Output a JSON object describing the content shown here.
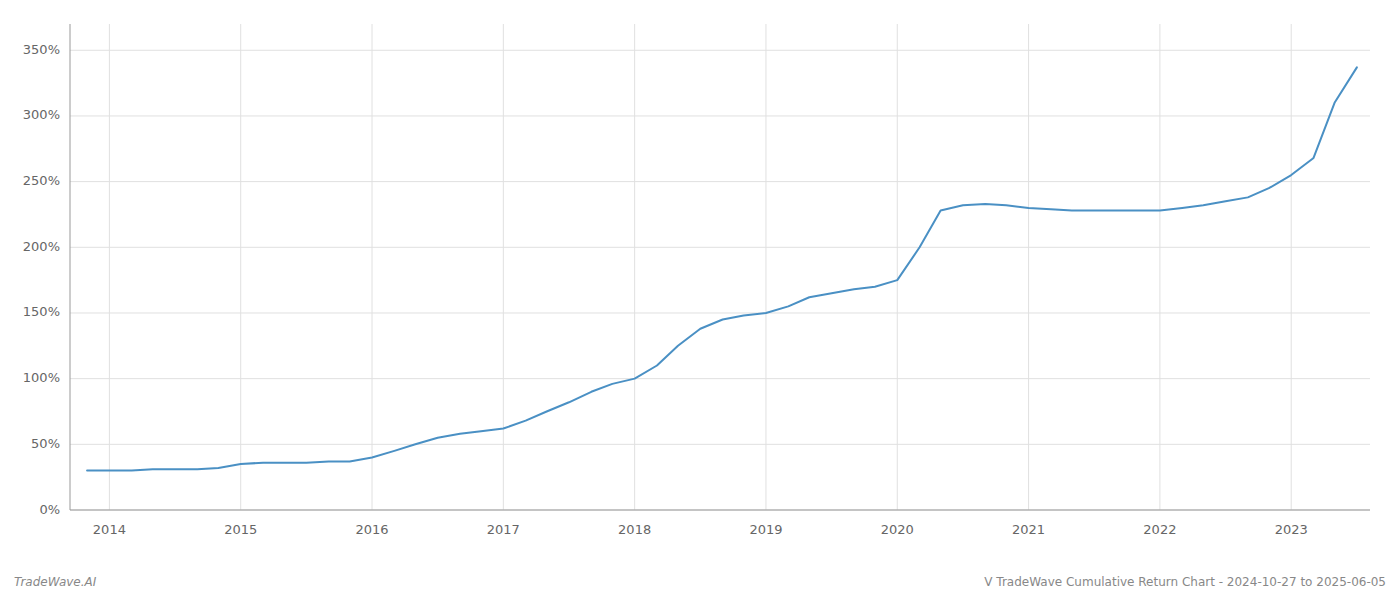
{
  "chart_data": {
    "type": "line",
    "title": "V TradeWave Cumulative Return Chart - 2024-10-27 to 2025-06-05",
    "annotations": [
      "TradeWave.AI"
    ],
    "color": "#4a90c4",
    "grid": true,
    "x": [
      2013.83,
      2014.0,
      2014.17,
      2014.33,
      2014.5,
      2014.67,
      2014.83,
      2015.0,
      2015.17,
      2015.33,
      2015.5,
      2015.67,
      2015.83,
      2016.0,
      2016.17,
      2016.33,
      2016.5,
      2016.67,
      2016.83,
      2017.0,
      2017.17,
      2017.33,
      2017.5,
      2017.67,
      2017.83,
      2018.0,
      2018.17,
      2018.33,
      2018.5,
      2018.67,
      2018.83,
      2019.0,
      2019.17,
      2019.33,
      2019.5,
      2019.67,
      2019.83,
      2020.0,
      2020.17,
      2020.33,
      2020.5,
      2020.67,
      2020.83,
      2021.0,
      2021.17,
      2021.33,
      2021.5,
      2021.67,
      2021.83,
      2022.0,
      2022.17,
      2022.33,
      2022.5,
      2022.67,
      2022.83,
      2023.0,
      2023.17,
      2023.33,
      2023.5
    ],
    "values": [
      30,
      30,
      30,
      31,
      31,
      31,
      32,
      35,
      36,
      36,
      36,
      37,
      37,
      40,
      45,
      50,
      55,
      58,
      60,
      62,
      68,
      75,
      82,
      90,
      96,
      100,
      110,
      125,
      138,
      145,
      148,
      150,
      155,
      162,
      165,
      168,
      170,
      175,
      200,
      228,
      232,
      233,
      232,
      230,
      229,
      228,
      228,
      228,
      228,
      228,
      230,
      232,
      235,
      238,
      245,
      255,
      268,
      310,
      337
    ],
    "xlim": [
      2013.7,
      2023.6
    ],
    "xticks": [
      2014,
      2015,
      2016,
      2017,
      2018,
      2019,
      2020,
      2021,
      2022,
      2023
    ],
    "ylim": [
      0,
      370
    ],
    "yticks": [
      {
        "value": 0,
        "label": "0%"
      },
      {
        "value": 50,
        "label": "50%"
      },
      {
        "value": 100,
        "label": "100%"
      },
      {
        "value": 150,
        "label": "150%"
      },
      {
        "value": 200,
        "label": "200%"
      },
      {
        "value": 250,
        "label": "250%"
      },
      {
        "value": 300,
        "label": "300%"
      },
      {
        "value": 350,
        "label": "350%"
      }
    ]
  }
}
